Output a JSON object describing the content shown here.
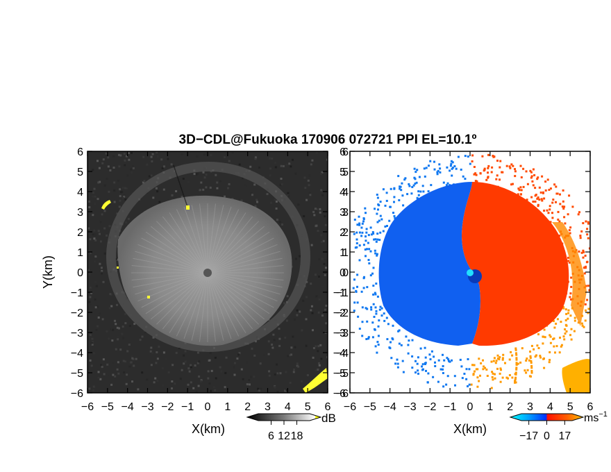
{
  "chart_data": [
    {
      "type": "heatmap",
      "title": "3D−CDL@Fukuoka 170906 072721 PPI EL=10.1º",
      "field": "reflectivity",
      "xlabel": "X(km)",
      "ylabel": "Y(km)",
      "xlim": [
        -6,
        6
      ],
      "ylim": [
        -6,
        6
      ],
      "x_ticks": [
        -6,
        -5,
        -4,
        -3,
        -2,
        -1,
        0,
        1,
        2,
        3,
        4,
        5,
        6
      ],
      "y_ticks": [
        -6,
        -5,
        -4,
        -3,
        -2,
        -1,
        0,
        1,
        2,
        3,
        4,
        5,
        6
      ],
      "colorbar": {
        "unit": "dB",
        "ticks": [
          6,
          12,
          18
        ],
        "range": [
          0,
          24
        ],
        "colors": [
          "#000000",
          "#ffffff",
          "#ffff00"
        ]
      },
      "colors": {
        "background": "#2a2a2a",
        "echo": "#8f8f8f",
        "clutter": "#ffff33"
      }
    },
    {
      "type": "heatmap",
      "field": "radial_velocity",
      "xlabel": "X(km)",
      "xlim": [
        -6,
        6
      ],
      "ylim": [
        -6,
        6
      ],
      "x_ticks": [
        -6,
        -5,
        -4,
        -3,
        -2,
        -1,
        0,
        1,
        2,
        3,
        4,
        5,
        6
      ],
      "y_ticks": [
        -6,
        -5,
        -4,
        -3,
        -2,
        -1,
        0,
        1,
        2,
        3,
        4,
        5,
        6
      ],
      "colorbar": {
        "unit": "ms",
        "unit_exp": "−1",
        "ticks": [
          -17,
          0,
          17
        ],
        "tick_labels": [
          "−17",
          "0",
          "17"
        ],
        "range": [
          -24,
          24
        ],
        "colors": [
          "#00ffff",
          "#0050ff",
          "#ff2000",
          "#ffc000"
        ]
      },
      "colors": {
        "approaching": "#1060f0",
        "receding": "#ff3000",
        "far_receding": "#ffb000"
      }
    }
  ]
}
